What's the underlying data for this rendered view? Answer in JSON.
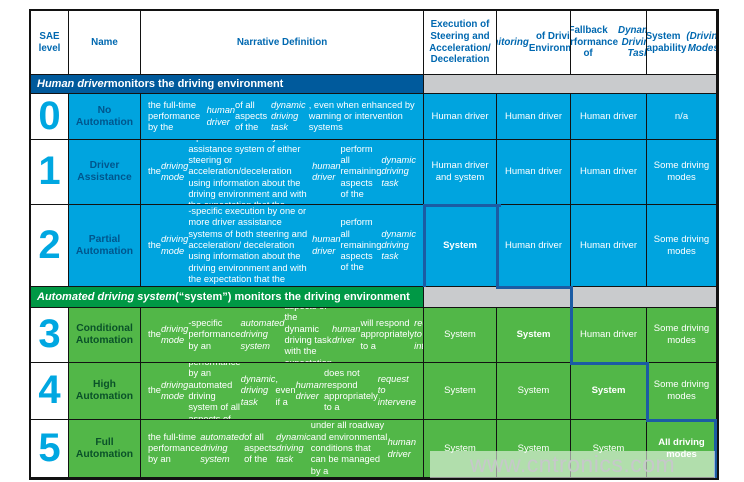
{
  "watermark": {
    "text": "www.cntronics.com"
  },
  "colors": {
    "cell_blue": "#00A4DF",
    "section_bar_blue": "#005A9C",
    "divider_line_navy": "#1B5CA4",
    "cell_green": "#52B748",
    "section_bar_green": "#009845",
    "spacer_gray": "#C9CBCD",
    "header_text_blue": "#0068B0"
  },
  "table": {
    "columns": [
      "SAE level",
      "Name",
      "Narrative Definition",
      "Execution of Steering and Acceleration/ Deceleration",
      "*Monitoring* of Driving Environment",
      "Fallback Performance of *Dynamic Driving Task*",
      "System Capability *(Driving Modes)*"
    ],
    "sections": [
      {
        "label": "*Human driver* monitors the driving environment",
        "theme": "blue"
      },
      {
        "label": "*Automated driving system* (“system”) monitors the driving environment",
        "theme": "green"
      }
    ],
    "rows": [
      {
        "level": "0",
        "name": "No Automation",
        "theme": "blue",
        "narrative": "the full-time performance by the *human driver* of all aspects of the *dynamic driving task*, even when enhanced by warning or intervention systems",
        "cells": [
          {
            "text": "Human driver",
            "bold": false
          },
          {
            "text": "Human driver",
            "bold": false
          },
          {
            "text": "Human driver",
            "bold": false
          },
          {
            "text": "n/a",
            "bold": false
          }
        ]
      },
      {
        "level": "1",
        "name": "Driver Assistance",
        "theme": "blue",
        "narrative": "the *driving mode*-specific execution by a driver assistance system of either steering or acceleration/deceleration using information about the driving environment and with the expectation that the *human driver* perform all remaining aspects of the *dynamic driving task*",
        "cells": [
          {
            "text": "Human driver and system",
            "bold": false
          },
          {
            "text": "Human driver",
            "bold": false
          },
          {
            "text": "Human driver",
            "bold": false
          },
          {
            "text": "Some driving modes",
            "bold": false
          }
        ]
      },
      {
        "level": "2",
        "name": "Partial Automation",
        "theme": "blue",
        "narrative": "the *driving mode*-specific execution by one or more driver assistance systems of both steering and acceleration/ deceleration using information about the driving environment and with the expectation that the *human driver* perform all remaining aspects of the *dynamic driving task*",
        "cells": [
          {
            "text": "System",
            "bold": true
          },
          {
            "text": "Human driver",
            "bold": false
          },
          {
            "text": "Human driver",
            "bold": false
          },
          {
            "text": "Some driving modes",
            "bold": false
          }
        ]
      },
      {
        "level": "3",
        "name": "Conditional Automation",
        "theme": "green",
        "narrative": "the *driving mode*-specific performance by an *automated driving system* of all aspects of the dynamic driving task with the expectation that the *human driver* will respond appropriately to a *request to intervene*",
        "cells": [
          {
            "text": "System",
            "bold": false
          },
          {
            "text": "System",
            "bold": true
          },
          {
            "text": "Human driver",
            "bold": false
          },
          {
            "text": "Some driving modes",
            "bold": false
          }
        ]
      },
      {
        "level": "4",
        "name": "High Automation",
        "theme": "green",
        "narrative": "the *driving mode*-specific performance by an automated driving system of all aspects of the *dynamic driving task*, even if a *human driver* does not respond appropriately to a *request to intervene*",
        "cells": [
          {
            "text": "System",
            "bold": false
          },
          {
            "text": "System",
            "bold": false
          },
          {
            "text": "System",
            "bold": true
          },
          {
            "text": "Some driving modes",
            "bold": false
          }
        ]
      },
      {
        "level": "5",
        "name": "Full Automation",
        "theme": "green",
        "narrative": "the full-time performance by an *automated driving system* of all aspects of the *dynamic driving task* under all roadway and environmental conditions that can be managed by a *human driver*",
        "cells": [
          {
            "text": "System",
            "bold": false
          },
          {
            "text": "System",
            "bold": false
          },
          {
            "text": "System",
            "bold": false
          },
          {
            "text": "All driving modes",
            "bold": true
          }
        ]
      }
    ]
  }
}
